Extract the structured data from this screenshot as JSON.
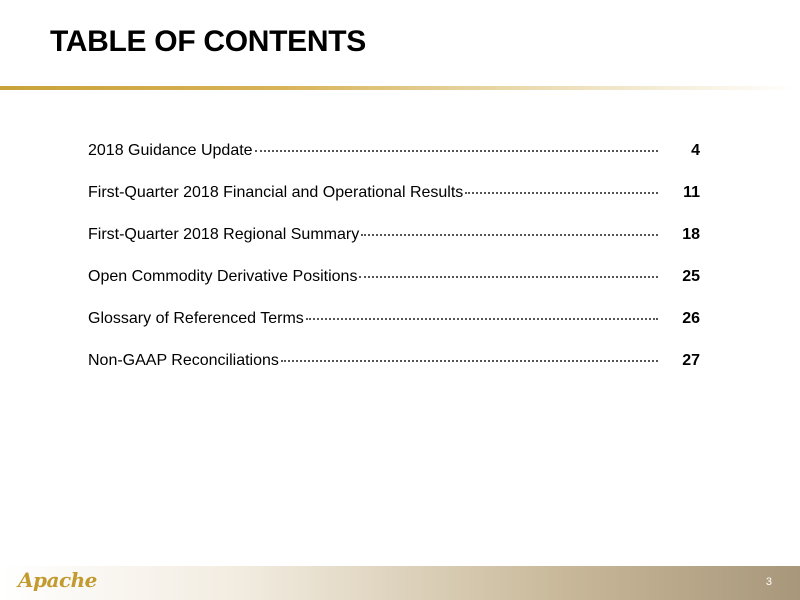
{
  "header": {
    "title": "TABLE OF CONTENTS"
  },
  "toc": {
    "items": [
      {
        "label": "2018 Guidance Update",
        "page": "4"
      },
      {
        "label": "First-Quarter 2018 Financial and Operational Results",
        "page": "11"
      },
      {
        "label": "First-Quarter 2018 Regional Summary",
        "page": "18"
      },
      {
        "label": "Open Commodity Derivative Positions",
        "page": "25"
      },
      {
        "label": "Glossary of Referenced Terms",
        "page": "26"
      },
      {
        "label": "Non-GAAP Reconciliations",
        "page": "27"
      }
    ]
  },
  "footer": {
    "logo_text": "Apache",
    "page_number": "3"
  },
  "colors": {
    "accent_gold": "#c9a23a",
    "footer_taupe": "#a8977a",
    "logo_gold": "#c39a2f"
  }
}
